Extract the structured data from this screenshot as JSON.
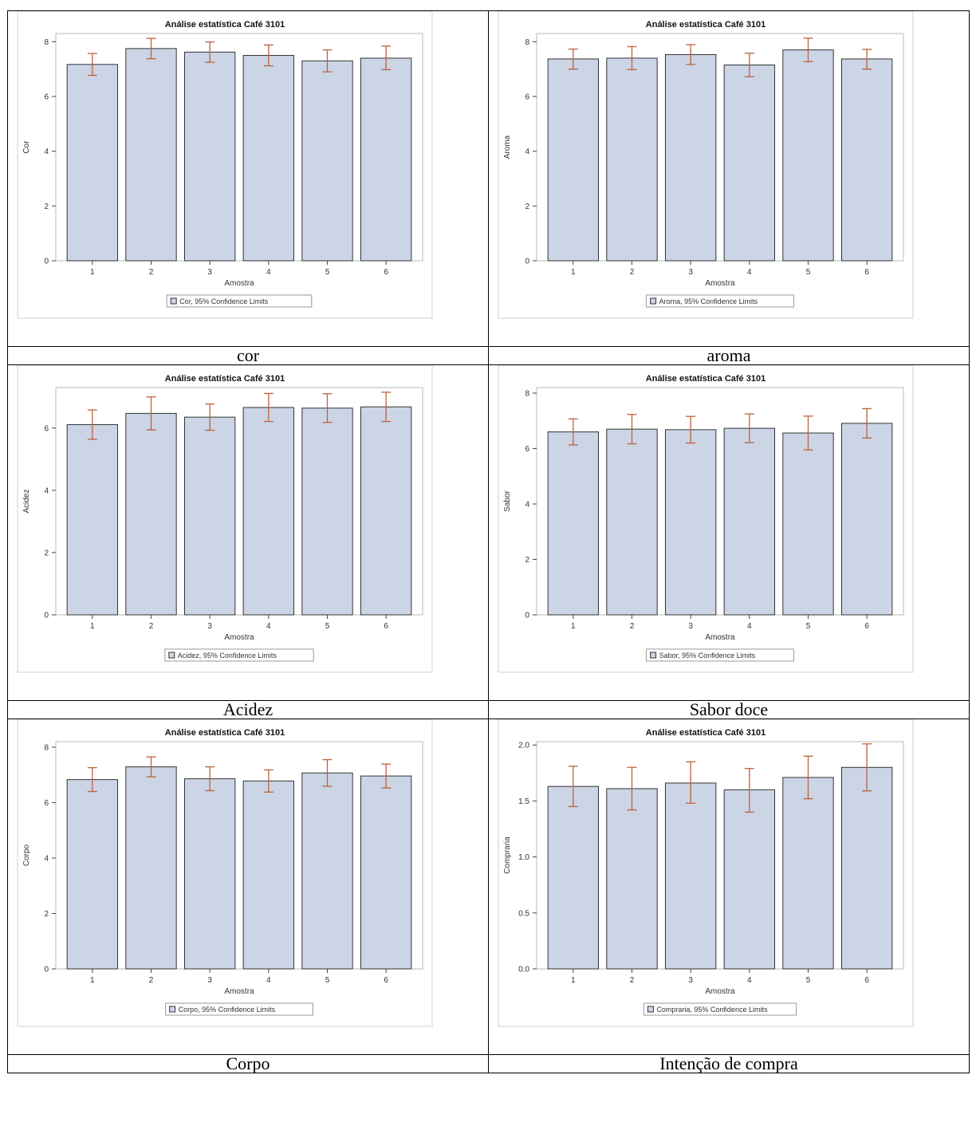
{
  "captions": [
    "cor",
    "aroma",
    "Acidez",
    "Sabor doce",
    "Corpo",
    "Intenção de compra"
  ],
  "chart_data": [
    {
      "type": "bar",
      "title": "Análise estatística Café 3101",
      "xlabel": "Amostra",
      "ylabel": "Cor",
      "categories": [
        "1",
        "2",
        "3",
        "4",
        "5",
        "6"
      ],
      "values": [
        7.17,
        7.75,
        7.62,
        7.5,
        7.3,
        7.4
      ],
      "lower": [
        6.77,
        7.38,
        7.25,
        7.12,
        6.9,
        6.98
      ],
      "upper": [
        7.57,
        8.12,
        7.99,
        7.88,
        7.7,
        7.84
      ],
      "ylim": [
        0,
        8.3
      ],
      "yticks": [
        "0",
        "2",
        "4",
        "6",
        "8"
      ],
      "ytick_values": [
        0,
        2,
        4,
        6,
        8
      ],
      "legend": "Cor, 95% Confidence Limits"
    },
    {
      "type": "bar",
      "title": "Análise estatística Café 3101",
      "xlabel": "Amostra",
      "ylabel": "Aroma",
      "categories": [
        "1",
        "2",
        "3",
        "4",
        "5",
        "6"
      ],
      "values": [
        7.37,
        7.4,
        7.53,
        7.15,
        7.7,
        7.37
      ],
      "lower": [
        7.0,
        6.98,
        7.17,
        6.72,
        7.27,
        7.0
      ],
      "upper": [
        7.73,
        7.82,
        7.89,
        7.58,
        8.13,
        7.72
      ],
      "ylim": [
        0,
        8.3
      ],
      "yticks": [
        "0",
        "2",
        "4",
        "6",
        "8"
      ],
      "ytick_values": [
        0,
        2,
        4,
        6,
        8
      ],
      "legend": "Aroma, 95% Confidence Limits"
    },
    {
      "type": "bar",
      "title": "Análise estatística Café 3101",
      "xlabel": "Amostra",
      "ylabel": "Acidez",
      "categories": [
        "1",
        "2",
        "3",
        "4",
        "5",
        "6"
      ],
      "values": [
        6.11,
        6.47,
        6.35,
        6.66,
        6.64,
        6.68
      ],
      "lower": [
        5.64,
        5.94,
        5.93,
        6.21,
        6.18,
        6.21
      ],
      "upper": [
        6.58,
        7.0,
        6.77,
        7.11,
        7.1,
        7.15
      ],
      "ylim": [
        0,
        7.3
      ],
      "yticks": [
        "0",
        "2",
        "4",
        "6"
      ],
      "ytick_values": [
        0,
        2,
        4,
        6
      ],
      "legend": "Acidez, 95% Confidence Limits"
    },
    {
      "type": "bar",
      "title": "Análise estatística Café 3101",
      "xlabel": "Amostra",
      "ylabel": "Sabor",
      "categories": [
        "1",
        "2",
        "3",
        "4",
        "5",
        "6"
      ],
      "values": [
        6.6,
        6.7,
        6.68,
        6.73,
        6.56,
        6.91
      ],
      "lower": [
        6.13,
        6.17,
        6.2,
        6.21,
        5.95,
        6.38
      ],
      "upper": [
        7.07,
        7.23,
        7.16,
        7.25,
        7.17,
        7.44
      ],
      "ylim": [
        0,
        8.2
      ],
      "yticks": [
        "0",
        "2",
        "4",
        "6",
        "8"
      ],
      "ytick_values": [
        0,
        2,
        4,
        6,
        8
      ],
      "legend": "Sabor, 95% Confidence Limits"
    },
    {
      "type": "bar",
      "title": "Análise estatística Café 3101",
      "xlabel": "Amostra",
      "ylabel": "Corpo",
      "categories": [
        "1",
        "2",
        "3",
        "4",
        "5",
        "6"
      ],
      "values": [
        6.83,
        7.29,
        6.86,
        6.78,
        7.07,
        6.96
      ],
      "lower": [
        6.4,
        6.93,
        6.43,
        6.38,
        6.59,
        6.53
      ],
      "upper": [
        7.26,
        7.65,
        7.29,
        7.18,
        7.55,
        7.39
      ],
      "ylim": [
        0,
        8.2
      ],
      "yticks": [
        "0",
        "2",
        "4",
        "6",
        "8"
      ],
      "ytick_values": [
        0,
        2,
        4,
        6,
        8
      ],
      "legend": "Corpo, 95% Confidence Limits"
    },
    {
      "type": "bar",
      "title": "Análise estatística Café 3101",
      "xlabel": "Amostra",
      "ylabel": "Compraria",
      "categories": [
        "1",
        "2",
        "3",
        "4",
        "5",
        "6"
      ],
      "values": [
        1.63,
        1.61,
        1.66,
        1.6,
        1.71,
        1.8
      ],
      "lower": [
        1.45,
        1.42,
        1.48,
        1.4,
        1.52,
        1.59
      ],
      "upper": [
        1.81,
        1.8,
        1.85,
        1.79,
        1.9,
        2.01
      ],
      "ylim": [
        0,
        2.03
      ],
      "yticks": [
        "0.0",
        "0.5",
        "1.0",
        "1.5",
        "2.0"
      ],
      "ytick_values": [
        0,
        0.5,
        1.0,
        1.5,
        2.0
      ],
      "legend": "Compraria, 95% Confidence Limits"
    }
  ]
}
